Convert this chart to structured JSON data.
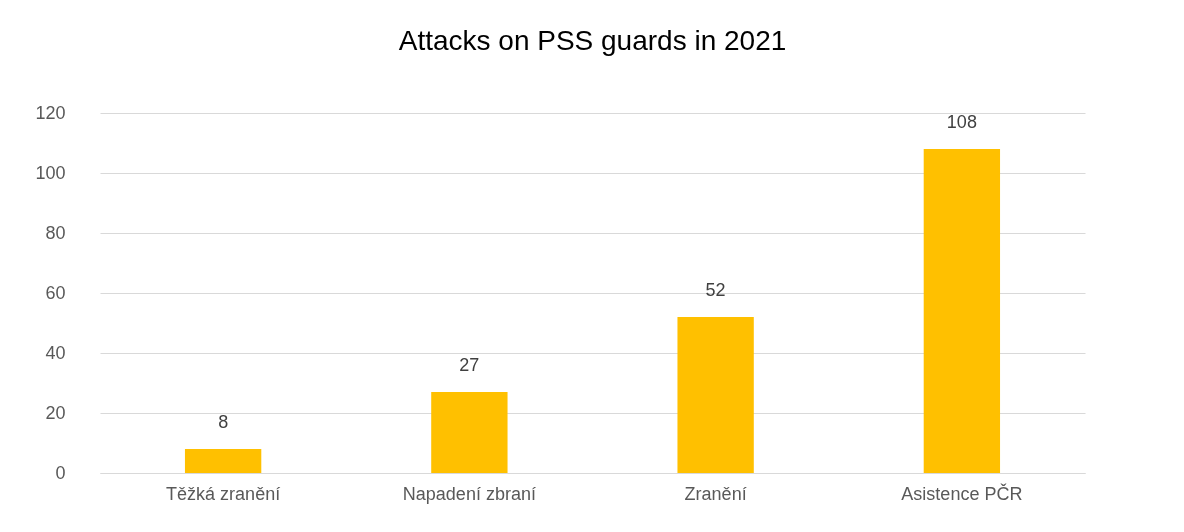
{
  "chart_data": {
    "type": "bar",
    "title": "Attacks on PSS guards in 2021",
    "categories": [
      "Těžká zranění",
      "Napadení zbraní",
      "Zranění",
      "Asistence PČR"
    ],
    "values": [
      8,
      27,
      52,
      108
    ],
    "color": "#ffc000",
    "ylim": [
      0,
      120
    ],
    "yticks": [
      0,
      20,
      40,
      60,
      80,
      100,
      120
    ],
    "grid": "y",
    "data_labels": true
  }
}
